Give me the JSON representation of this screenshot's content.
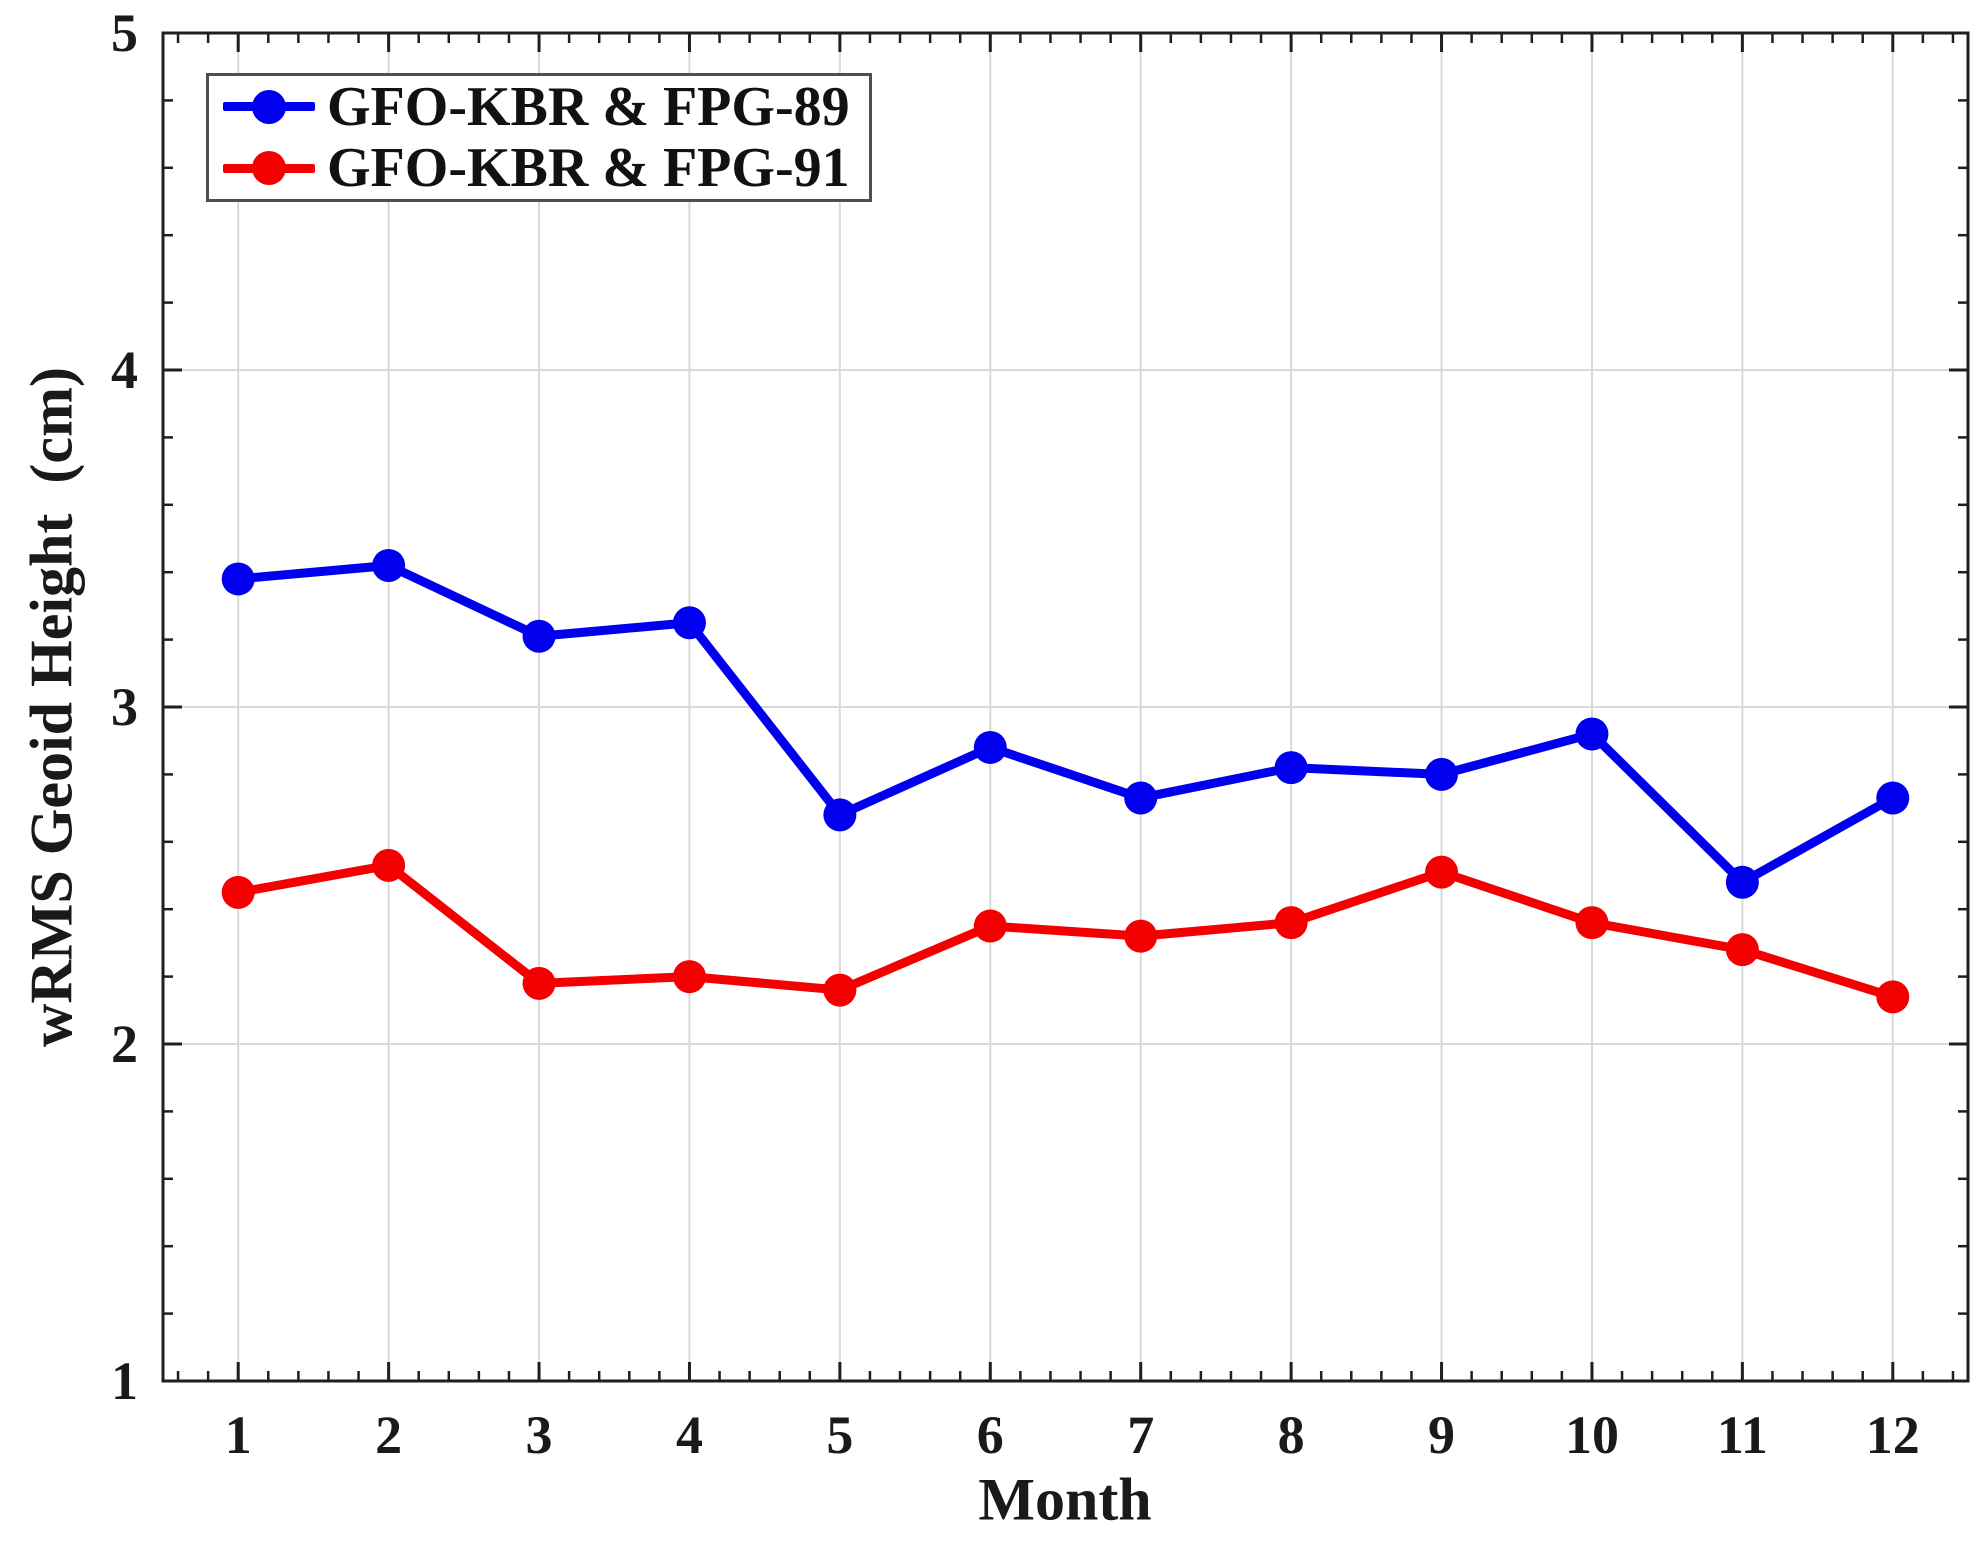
{
  "chart_data": {
    "type": "line",
    "title": "",
    "xlabel": "Month",
    "ylabel": "wRMS Geoid Height  (cm)",
    "x": [
      1,
      2,
      3,
      4,
      5,
      6,
      7,
      8,
      9,
      10,
      11,
      12
    ],
    "x_ticks": [
      1,
      2,
      3,
      4,
      5,
      6,
      7,
      8,
      9,
      10,
      11,
      12
    ],
    "y_ticks": [
      1,
      2,
      3,
      4,
      5
    ],
    "xlim": [
      0.5,
      12.5
    ],
    "ylim": [
      1,
      5
    ],
    "minor_tick_step": 0.2,
    "grid": true,
    "legend_position": "top-left",
    "series": [
      {
        "name": "GFO-KBR & FPG-89",
        "color": "#0000ee",
        "values": [
          3.38,
          3.42,
          3.21,
          3.25,
          2.68,
          2.88,
          2.73,
          2.82,
          2.8,
          2.92,
          2.48,
          2.73
        ]
      },
      {
        "name": "GFO-KBR & FPG-91",
        "color": "#f40000",
        "values": [
          2.45,
          2.53,
          2.18,
          2.2,
          2.16,
          2.35,
          2.32,
          2.36,
          2.51,
          2.36,
          2.28,
          2.14
        ]
      }
    ]
  },
  "styles": {
    "grid_color": "#d9d9d9",
    "axis_color": "#1f1f1f",
    "tick_label_color": "#1a1a1a",
    "background": "#ffffff"
  }
}
